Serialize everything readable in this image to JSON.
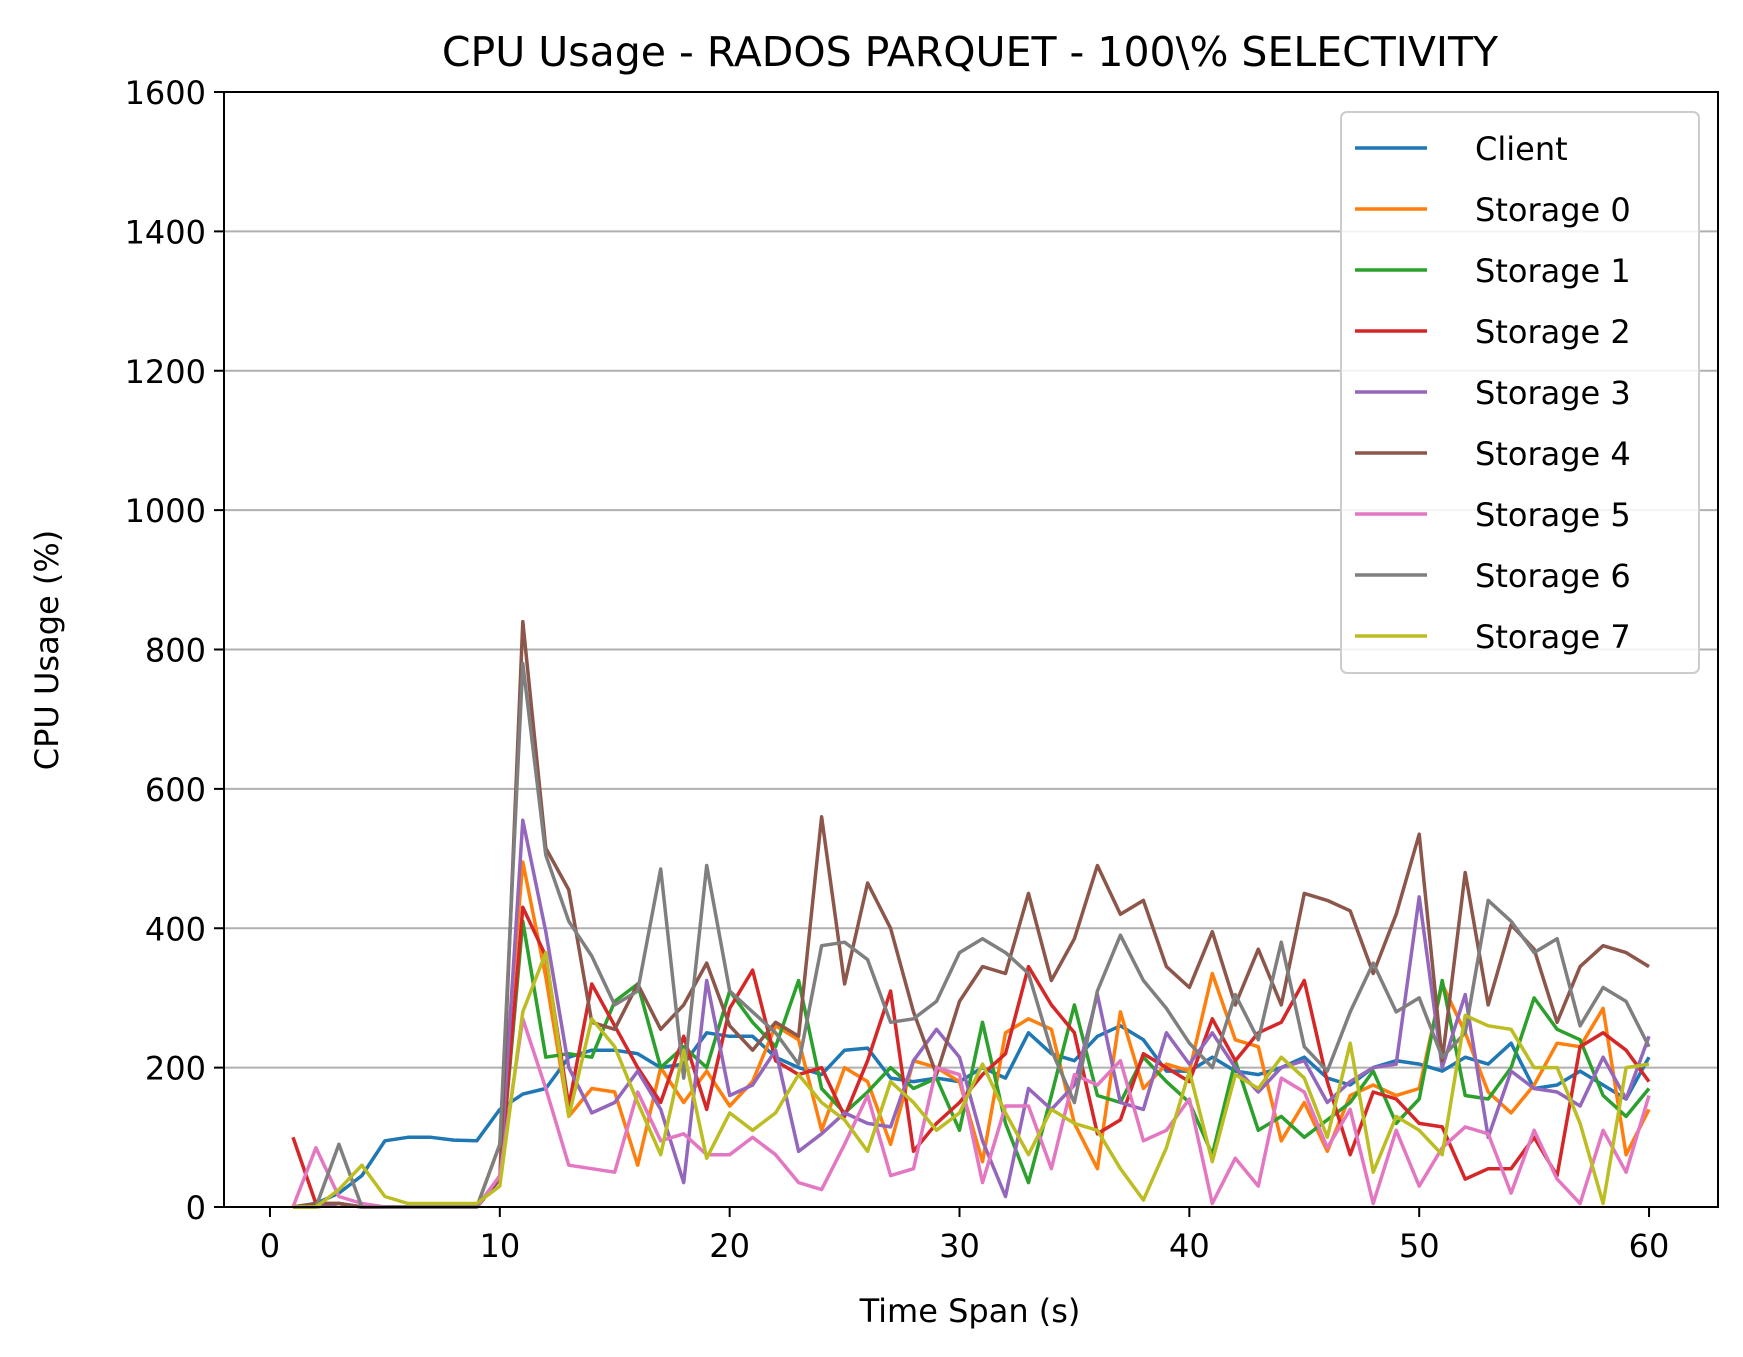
{
  "chart_data": {
    "type": "line",
    "title": "CPU Usage - RADOS PARQUET - 100\\% SELECTIVITY",
    "xlabel": "Time Span (s)",
    "ylabel": "CPU Usage (%)",
    "xlim": [
      -2,
      63
    ],
    "ylim": [
      0,
      1600
    ],
    "xticks": [
      0,
      10,
      20,
      30,
      40,
      50,
      60
    ],
    "yticks": [
      0,
      200,
      400,
      600,
      800,
      1000,
      1200,
      1400,
      1600
    ],
    "grid": "horizontal",
    "legend_position": "top-right",
    "x": [
      1,
      2,
      3,
      4,
      5,
      6,
      7,
      8,
      9,
      10,
      11,
      12,
      13,
      14,
      15,
      16,
      17,
      18,
      19,
      20,
      21,
      22,
      23,
      24,
      25,
      26,
      27,
      28,
      29,
      30,
      31,
      32,
      33,
      34,
      35,
      36,
      37,
      38,
      39,
      40,
      41,
      42,
      43,
      44,
      45,
      46,
      47,
      48,
      49,
      50,
      51,
      52,
      53,
      54,
      55,
      56,
      57,
      58,
      59,
      60
    ],
    "series": [
      {
        "name": "Client",
        "color": "#1f77b4",
        "values": [
          0,
          5,
          20,
          45,
          95,
          100,
          100,
          96,
          95,
          140,
          162,
          170,
          215,
          225,
          225,
          220,
          200,
          205,
          250,
          245,
          245,
          215,
          200,
          190,
          225,
          228,
          185,
          180,
          185,
          180,
          200,
          185,
          250,
          220,
          210,
          245,
          260,
          240,
          195,
          195,
          215,
          195,
          190,
          200,
          215,
          185,
          175,
          200,
          210,
          205,
          195,
          215,
          205,
          235,
          170,
          175,
          195,
          175,
          155,
          215
        ]
      },
      {
        "name": "Storage 0",
        "color": "#ff7f0e",
        "values": [
          0,
          0,
          5,
          0,
          0,
          0,
          0,
          0,
          0,
          90,
          495,
          330,
          130,
          170,
          165,
          60,
          200,
          150,
          195,
          145,
          180,
          260,
          240,
          110,
          200,
          180,
          90,
          210,
          200,
          180,
          65,
          250,
          270,
          255,
          120,
          55,
          280,
          170,
          205,
          195,
          335,
          240,
          230,
          95,
          150,
          80,
          160,
          175,
          160,
          170,
          320,
          250,
          165,
          135,
          175,
          235,
          230,
          285,
          75,
          140
        ]
      },
      {
        "name": "Storage 1",
        "color": "#2ca02c",
        "values": [
          0,
          0,
          5,
          0,
          0,
          0,
          0,
          0,
          0,
          40,
          410,
          215,
          220,
          215,
          295,
          320,
          200,
          230,
          200,
          310,
          265,
          230,
          325,
          170,
          135,
          165,
          200,
          170,
          185,
          110,
          265,
          120,
          35,
          160,
          290,
          160,
          150,
          215,
          180,
          150,
          75,
          210,
          110,
          130,
          100,
          125,
          150,
          195,
          120,
          155,
          325,
          160,
          155,
          200,
          300,
          255,
          240,
          160,
          130,
          170
        ]
      },
      {
        "name": "Storage 2",
        "color": "#d62728",
        "values": [
          100,
          5,
          5,
          0,
          0,
          0,
          0,
          0,
          0,
          40,
          430,
          360,
          145,
          320,
          260,
          200,
          150,
          245,
          140,
          285,
          340,
          210,
          190,
          200,
          130,
          210,
          310,
          80,
          120,
          150,
          190,
          220,
          345,
          290,
          250,
          105,
          125,
          220,
          200,
          180,
          270,
          210,
          250,
          265,
          325,
          180,
          75,
          165,
          155,
          120,
          115,
          40,
          55,
          55,
          100,
          45,
          230,
          250,
          225,
          180
        ]
      },
      {
        "name": "Storage 3",
        "color": "#9467bd",
        "values": [
          0,
          0,
          5,
          0,
          0,
          0,
          0,
          0,
          0,
          40,
          555,
          395,
          200,
          135,
          150,
          195,
          140,
          35,
          325,
          160,
          175,
          225,
          80,
          105,
          135,
          120,
          115,
          210,
          255,
          215,
          95,
          15,
          170,
          140,
          175,
          305,
          150,
          140,
          250,
          205,
          250,
          200,
          165,
          200,
          210,
          150,
          180,
          200,
          205,
          445,
          200,
          305,
          100,
          195,
          170,
          165,
          145,
          215,
          155,
          245
        ]
      },
      {
        "name": "Storage 4",
        "color": "#8c564b",
        "values": [
          0,
          5,
          5,
          0,
          0,
          0,
          0,
          0,
          0,
          40,
          840,
          515,
          455,
          265,
          255,
          320,
          255,
          290,
          350,
          260,
          225,
          265,
          245,
          560,
          320,
          465,
          400,
          280,
          190,
          295,
          345,
          335,
          450,
          325,
          385,
          490,
          420,
          440,
          345,
          315,
          395,
          290,
          370,
          290,
          450,
          440,
          425,
          335,
          420,
          535,
          210,
          480,
          290,
          405,
          370,
          265,
          345,
          375,
          365,
          345
        ]
      },
      {
        "name": "Storage 5",
        "color": "#e377c2",
        "values": [
          0,
          85,
          15,
          5,
          0,
          0,
          0,
          0,
          0,
          45,
          270,
          170,
          60,
          55,
          50,
          165,
          95,
          105,
          75,
          75,
          100,
          75,
          35,
          25,
          90,
          160,
          45,
          55,
          200,
          190,
          35,
          145,
          145,
          55,
          190,
          175,
          210,
          95,
          110,
          155,
          5,
          70,
          30,
          185,
          165,
          85,
          140,
          5,
          110,
          30,
          85,
          115,
          105,
          20,
          110,
          40,
          5,
          110,
          50,
          160
        ]
      },
      {
        "name": "Storage 6",
        "color": "#7f7f7f",
        "values": [
          0,
          0,
          90,
          0,
          0,
          0,
          0,
          0,
          0,
          90,
          780,
          505,
          410,
          360,
          290,
          310,
          485,
          185,
          490,
          310,
          280,
          250,
          205,
          375,
          380,
          355,
          265,
          270,
          295,
          365,
          385,
          365,
          335,
          225,
          150,
          310,
          390,
          325,
          285,
          235,
          200,
          305,
          240,
          380,
          230,
          195,
          280,
          350,
          280,
          300,
          215,
          250,
          440,
          410,
          365,
          385,
          260,
          315,
          295,
          230
        ]
      },
      {
        "name": "Storage 7",
        "color": "#bcbd22",
        "values": [
          0,
          0,
          25,
          60,
          15,
          5,
          5,
          5,
          5,
          30,
          280,
          365,
          130,
          270,
          230,
          150,
          75,
          225,
          70,
          135,
          110,
          135,
          190,
          150,
          125,
          80,
          180,
          150,
          110,
          135,
          205,
          135,
          75,
          140,
          120,
          110,
          55,
          10,
          85,
          195,
          65,
          190,
          170,
          215,
          185,
          100,
          235,
          50,
          130,
          110,
          75,
          275,
          260,
          255,
          200,
          200,
          120,
          5,
          200,
          205
        ]
      }
    ]
  }
}
